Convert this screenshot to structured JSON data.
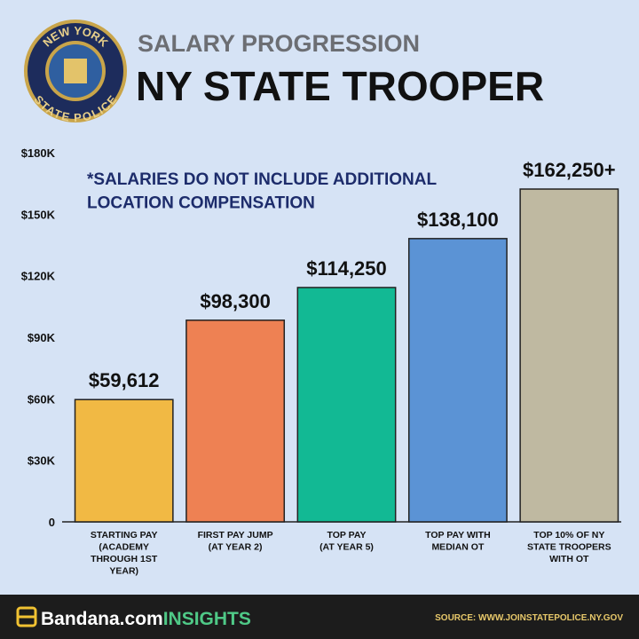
{
  "logo": {
    "top": "NEW YORK",
    "bottom": "STATE POLICE"
  },
  "chart_data": {
    "type": "bar",
    "subtitle": "SALARY PROGRESSION",
    "title": "NY STATE TROOPER",
    "annotation": "*SALARIES DO NOT INCLUDE ADDITIONAL\nLOCATION COMPENSATION",
    "categories": [
      "STARTING PAY\n(ACADEMY\nTHROUGH 1ST\nYEAR)",
      "FIRST PAY JUMP\n(AT YEAR 2)",
      "TOP PAY\n(AT YEAR 5)",
      "TOP PAY WITH\nMEDIAN OT",
      "TOP 10% OF NY\nSTATE TROOPERS\nWITH OT"
    ],
    "values": [
      59612,
      98300,
      114250,
      138100,
      162250
    ],
    "value_labels": [
      "$59,612",
      "$98,300",
      "$114,250",
      "$138,100",
      "$162,250+"
    ],
    "colors": [
      "#f1b944",
      "#ee8153",
      "#12b994",
      "#5b93d5",
      "#bfb9a1"
    ],
    "ylim": [
      0,
      180000
    ],
    "yticks": [
      0,
      {
        "value": 30000,
        "label": "$30K"
      },
      {
        "value": 60000,
        "label": "$60K"
      },
      {
        "value": 90000,
        "label": "$90K"
      },
      {
        "value": 120000,
        "label": "$120K"
      },
      {
        "value": 150000,
        "label": "$150K"
      },
      {
        "value": 180000,
        "label": "$180K"
      }
    ],
    "grid": false
  },
  "footer": {
    "brand": "Bandana.com",
    "brand_suffix": "INSIGHTS",
    "source": "SOURCE: WWW.JOINSTATEPOLICE.NY.GOV"
  }
}
